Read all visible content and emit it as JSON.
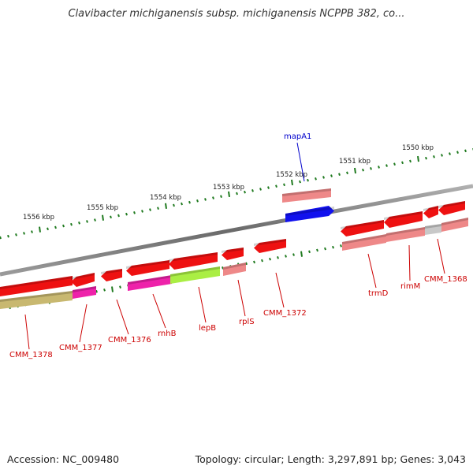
{
  "title": "Clavibacter michiganensis subsp. michiganensis NCPPB 382, co...",
  "footer": {
    "accession": "Accession: NC_009480",
    "summary": "Topology: circular; Length: 3,297,891 bp; Genes: 3,043"
  },
  "colors": {
    "backbone": "#7a7a7a",
    "tick_major": "#2e7d1a",
    "tick_minor": "#1f7a1f",
    "gene_red": "#ee1111",
    "gene_pink": "#ee8888",
    "gene_blue": "#1111ee",
    "gene_magenta": "#ee22aa",
    "gene_lime": "#aaee44",
    "gene_olive": "#c8b870",
    "gene_gray": "#c8c8c8",
    "label_red": "#cc0000",
    "label_blue": "#0000cc"
  },
  "scale_labels": [
    "1556 kbp",
    "1555 kbp",
    "1554 kbp",
    "1553 kbp",
    "1552 kbp",
    "1551 kbp",
    "1550 kbp"
  ],
  "gene_labels": [
    {
      "text": "mapA1",
      "color": "label_blue"
    },
    {
      "text": "CMM_1378",
      "color": "label_red"
    },
    {
      "text": "CMM_1377",
      "color": "label_red"
    },
    {
      "text": "CMM_1376",
      "color": "label_red"
    },
    {
      "text": "rnhB",
      "color": "label_red"
    },
    {
      "text": "lepB",
      "color": "label_red"
    },
    {
      "text": "rplS",
      "color": "label_red"
    },
    {
      "text": "CMM_1372",
      "color": "label_red"
    },
    {
      "text": "trmD",
      "color": "label_red"
    },
    {
      "text": "rimM",
      "color": "label_red"
    },
    {
      "text": "CMM_1368",
      "color": "label_red"
    }
  ]
}
